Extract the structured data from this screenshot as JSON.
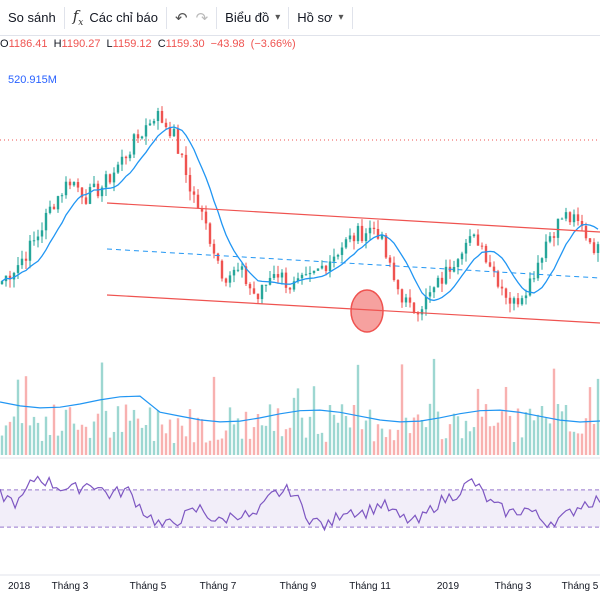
{
  "toolbar": {
    "compare_label": "So sánh",
    "indicators_label": "Các chỉ báo",
    "chart_label": "Biểu đồ",
    "profile_label": "Hồ sơ"
  },
  "legend": {
    "open": "1186.41",
    "high": "1190.27",
    "low": "1159.12",
    "close": "1159.30",
    "change": "−43.98",
    "change_pct": "(−3.66%)",
    "volume": "520.915M"
  },
  "colors": {
    "up": "#26a69a",
    "down": "#ef5350",
    "ma": "#2196f3",
    "channel": "#ef5350",
    "rsi": "#7e57c2"
  },
  "chart_data": {
    "type": "line",
    "x_ticks": [
      "2018",
      "Tháng 3",
      "Tháng 5",
      "Tháng 7",
      "Tháng 9",
      "Tháng 11",
      "2019",
      "Tháng 3",
      "Tháng 5"
    ],
    "price_trajectory": [
      990,
      1020,
      1060,
      1120,
      1160,
      1130,
      1150,
      1190,
      1230,
      1270,
      1240,
      1150,
      1080,
      1000,
      1005,
      960,
      1010,
      980,
      990,
      1020,
      1050,
      1070,
      1080,
      990,
      940,
      960,
      1000,
      1050,
      1060,
      1000,
      950,
      990,
      1060,
      1100,
      1080,
      1040
    ],
    "rsi_trajectory": [
      65,
      55,
      85,
      75,
      70,
      78,
      65,
      70,
      45,
      30,
      40,
      50,
      35,
      45,
      40,
      65,
      70,
      40,
      30,
      50,
      45,
      55,
      40,
      35,
      55,
      65,
      80,
      55,
      45,
      50,
      35,
      40,
      55,
      60
    ],
    "rsi_levels": [
      70,
      30
    ],
    "annotations": [
      "descending price channel",
      "circle marker at channel lower bound"
    ]
  }
}
